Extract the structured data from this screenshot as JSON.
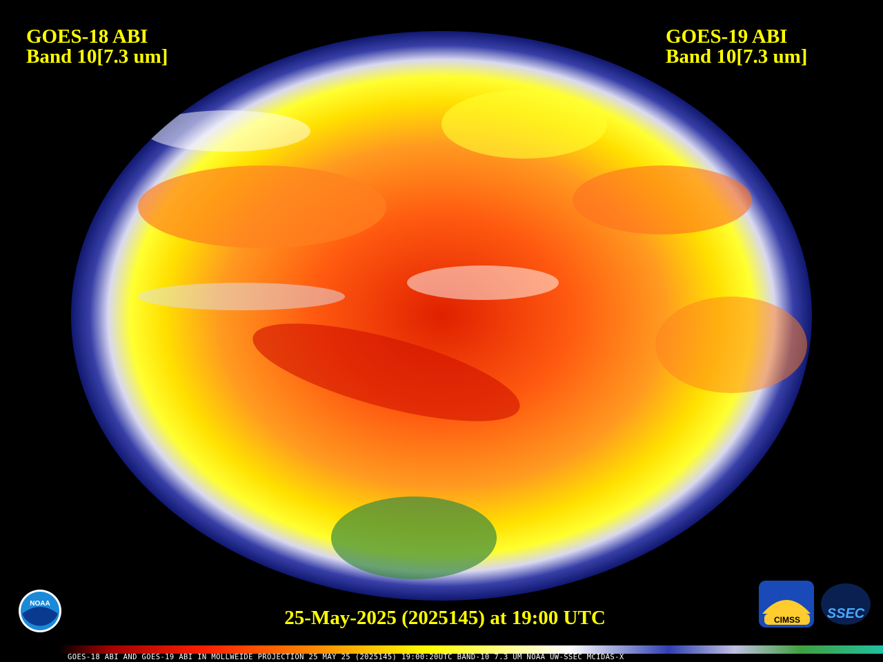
{
  "left_label": {
    "line1": "GOES-18 ABI",
    "line2": "Band 10[7.3 um]"
  },
  "right_label": {
    "line1": "GOES-19 ABI",
    "line2": "Band 10[7.3 um]"
  },
  "timestamp": "25-May-2025 (2025145) at 19:00 UTC",
  "colorbar_caption": "GOES-18 ABI AND GOES-19 ABI IN MOLLWEIDE PROJECTION 25 MAY 25 (2025145) 19:00:20UTC BAND-10 7.3 UM NOAA UW-SSEC MCIDAS-X",
  "logos": {
    "noaa": "NOAA",
    "cimss": "CIMSS",
    "ssec": "SSEC"
  }
}
